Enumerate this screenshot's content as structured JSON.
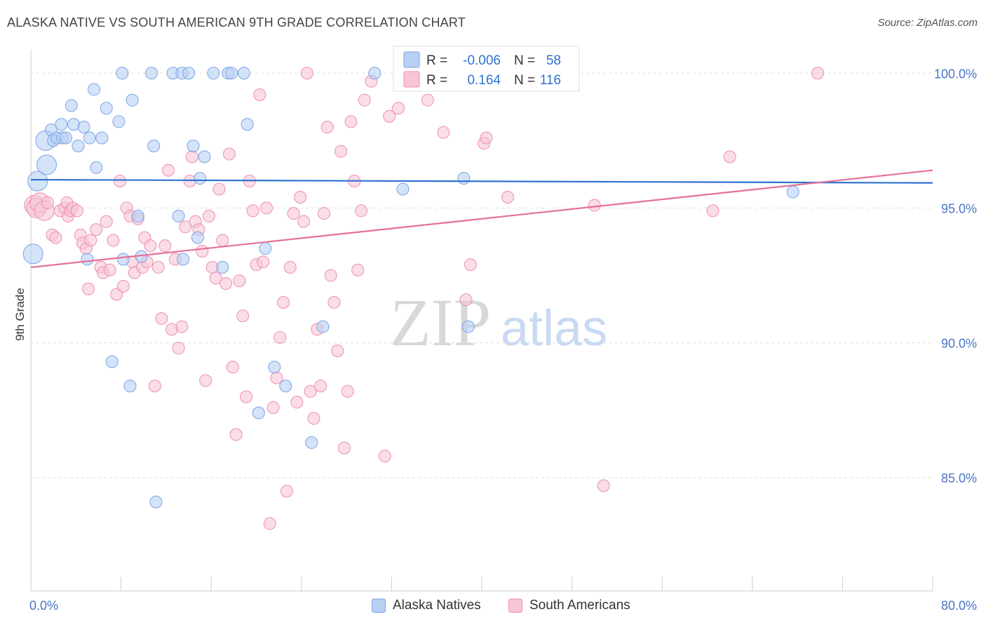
{
  "title": "ALASKA NATIVE VS SOUTH AMERICAN 9TH GRADE CORRELATION CHART",
  "source": "Source: ZipAtlas.com",
  "watermark": {
    "zip": "ZIP",
    "atlas": "atlas"
  },
  "colors": {
    "blue": "#7ba3e6",
    "blue_fill": "#b8d0f3",
    "blue_line": "#2f72d0",
    "pink": "#ee8fae",
    "pink_fill": "#f7c6d6",
    "pink_line": "#e4709a",
    "tick": "#4a74c8",
    "grid": "#dddddd"
  },
  "legend": {
    "rows": [
      {
        "r_label": "R =",
        "r_value": "-0.006",
        "n_label": "N =",
        "n_value": "58"
      },
      {
        "r_label": "R =",
        "r_value": "0.164",
        "n_label": "N =",
        "n_value": "116"
      }
    ]
  },
  "bottom_legend": {
    "alaska": "Alaska Natives",
    "south": "South Americans"
  },
  "chart_data": {
    "type": "scatter",
    "title": "ALASKA NATIVE VS SOUTH AMERICAN 9TH GRADE CORRELATION CHART",
    "xlabel": "",
    "ylabel": "9th Grade",
    "xlim": [
      0,
      80
    ],
    "ylim": [
      80.8,
      101.1
    ],
    "x_tick_labels": [
      "0.0%",
      "80.0%"
    ],
    "y_ticks": [
      100,
      95,
      90,
      85
    ],
    "y_tick_labels": [
      "100.0%",
      "95.0%",
      "90.0%",
      "85.0%"
    ],
    "grid": true,
    "legend_position": "top-center",
    "series": [
      {
        "name": "Alaska Natives",
        "r": -0.006,
        "n": 58,
        "trend": {
          "x0": 0,
          "y0": 96.05,
          "x1": 80,
          "y1": 95.93
        },
        "points": [
          [
            0.2,
            93.3
          ],
          [
            0.6,
            96.0
          ],
          [
            1.3,
            97.5
          ],
          [
            1.4,
            96.6
          ],
          [
            1.8,
            97.9
          ],
          [
            2.0,
            97.5
          ],
          [
            2.3,
            97.6
          ],
          [
            2.7,
            98.1
          ],
          [
            2.8,
            97.6
          ],
          [
            3.1,
            97.6
          ],
          [
            3.6,
            98.8
          ],
          [
            3.8,
            98.1
          ],
          [
            4.2,
            97.3
          ],
          [
            4.7,
            98.0
          ],
          [
            5.0,
            93.1
          ],
          [
            5.2,
            97.6
          ],
          [
            5.6,
            99.4
          ],
          [
            5.8,
            96.5
          ],
          [
            6.3,
            97.6
          ],
          [
            6.7,
            98.7
          ],
          [
            7.2,
            89.3
          ],
          [
            7.8,
            98.2
          ],
          [
            8.1,
            100.0
          ],
          [
            8.2,
            93.1
          ],
          [
            8.8,
            88.4
          ],
          [
            9.0,
            99.0
          ],
          [
            9.5,
            94.7
          ],
          [
            9.8,
            93.2
          ],
          [
            10.7,
            100.0
          ],
          [
            10.9,
            97.3
          ],
          [
            11.1,
            84.1
          ],
          [
            12.6,
            100.0
          ],
          [
            13.1,
            94.7
          ],
          [
            13.4,
            100.0
          ],
          [
            13.5,
            93.1
          ],
          [
            14.0,
            100.0
          ],
          [
            14.4,
            97.3
          ],
          [
            14.8,
            93.9
          ],
          [
            15.0,
            96.1
          ],
          [
            15.4,
            96.9
          ],
          [
            16.2,
            100.0
          ],
          [
            17.0,
            92.8
          ],
          [
            17.5,
            100.0
          ],
          [
            17.8,
            100.0
          ],
          [
            18.9,
            100.0
          ],
          [
            19.2,
            98.1
          ],
          [
            20.2,
            87.4
          ],
          [
            20.8,
            93.5
          ],
          [
            21.6,
            89.1
          ],
          [
            22.6,
            88.4
          ],
          [
            24.9,
            86.3
          ],
          [
            25.9,
            90.6
          ],
          [
            30.5,
            100.0
          ],
          [
            33.0,
            95.7
          ],
          [
            38.4,
            96.1
          ],
          [
            38.8,
            90.6
          ],
          [
            41.3,
            100.0
          ],
          [
            67.6,
            95.6
          ]
        ]
      },
      {
        "name": "South Americans",
        "r": 0.164,
        "n": 116,
        "trend": {
          "x0": 0,
          "y0": 92.8,
          "x1": 80,
          "y1": 96.4
        },
        "points": [
          [
            0.3,
            95.1
          ],
          [
            0.5,
            95.0
          ],
          [
            0.8,
            95.2
          ],
          [
            1.2,
            94.9
          ],
          [
            1.5,
            95.2
          ],
          [
            1.9,
            94.0
          ],
          [
            2.2,
            93.9
          ],
          [
            2.6,
            94.9
          ],
          [
            3.0,
            95.0
          ],
          [
            3.2,
            95.2
          ],
          [
            3.3,
            94.7
          ],
          [
            3.5,
            94.9
          ],
          [
            3.7,
            95.0
          ],
          [
            4.1,
            94.9
          ],
          [
            4.4,
            94.0
          ],
          [
            4.6,
            93.7
          ],
          [
            4.9,
            93.5
          ],
          [
            5.1,
            92.0
          ],
          [
            5.3,
            93.8
          ],
          [
            5.8,
            94.2
          ],
          [
            6.2,
            92.8
          ],
          [
            6.4,
            92.6
          ],
          [
            6.7,
            94.5
          ],
          [
            7.0,
            92.7
          ],
          [
            7.3,
            93.8
          ],
          [
            7.6,
            91.8
          ],
          [
            7.9,
            96.0
          ],
          [
            8.2,
            92.1
          ],
          [
            8.5,
            95.0
          ],
          [
            8.8,
            94.7
          ],
          [
            9.0,
            93.0
          ],
          [
            9.2,
            92.6
          ],
          [
            9.5,
            94.6
          ],
          [
            9.9,
            92.8
          ],
          [
            10.1,
            93.9
          ],
          [
            10.3,
            93.0
          ],
          [
            10.6,
            93.6
          ],
          [
            11.0,
            88.4
          ],
          [
            11.3,
            92.8
          ],
          [
            11.6,
            90.9
          ],
          [
            11.9,
            93.6
          ],
          [
            12.2,
            96.4
          ],
          [
            12.5,
            90.5
          ],
          [
            12.8,
            93.1
          ],
          [
            13.1,
            89.8
          ],
          [
            13.4,
            90.6
          ],
          [
            13.7,
            94.3
          ],
          [
            14.1,
            96.0
          ],
          [
            14.3,
            96.9
          ],
          [
            14.6,
            94.5
          ],
          [
            14.9,
            94.2
          ],
          [
            15.2,
            93.4
          ],
          [
            15.5,
            88.6
          ],
          [
            15.8,
            94.7
          ],
          [
            16.1,
            92.8
          ],
          [
            16.4,
            92.4
          ],
          [
            16.7,
            95.7
          ],
          [
            17.0,
            93.8
          ],
          [
            17.3,
            92.2
          ],
          [
            17.6,
            97.0
          ],
          [
            17.9,
            89.1
          ],
          [
            18.2,
            86.6
          ],
          [
            18.5,
            92.3
          ],
          [
            18.8,
            91.0
          ],
          [
            19.1,
            88.0
          ],
          [
            19.4,
            96.0
          ],
          [
            19.7,
            94.9
          ],
          [
            20.0,
            92.9
          ],
          [
            20.3,
            99.2
          ],
          [
            20.6,
            93.0
          ],
          [
            20.9,
            95.0
          ],
          [
            21.2,
            83.3
          ],
          [
            21.5,
            87.6
          ],
          [
            21.8,
            88.7
          ],
          [
            22.1,
            90.2
          ],
          [
            22.4,
            91.5
          ],
          [
            22.7,
            84.5
          ],
          [
            23.0,
            92.8
          ],
          [
            23.3,
            94.8
          ],
          [
            23.6,
            87.8
          ],
          [
            23.9,
            95.4
          ],
          [
            24.2,
            94.5
          ],
          [
            24.5,
            100.0
          ],
          [
            24.8,
            88.2
          ],
          [
            25.1,
            87.2
          ],
          [
            25.4,
            90.5
          ],
          [
            25.7,
            88.4
          ],
          [
            26.0,
            94.8
          ],
          [
            26.3,
            98.0
          ],
          [
            26.6,
            92.5
          ],
          [
            26.9,
            91.5
          ],
          [
            27.2,
            89.7
          ],
          [
            27.5,
            97.1
          ],
          [
            27.8,
            86.1
          ],
          [
            28.1,
            88.2
          ],
          [
            28.4,
            98.2
          ],
          [
            28.7,
            96.0
          ],
          [
            29.0,
            92.7
          ],
          [
            29.3,
            94.9
          ],
          [
            29.6,
            99.0
          ],
          [
            30.2,
            99.7
          ],
          [
            31.4,
            85.8
          ],
          [
            31.8,
            98.4
          ],
          [
            32.6,
            98.7
          ],
          [
            33.2,
            100.0
          ],
          [
            34.0,
            99.7
          ],
          [
            35.2,
            99.0
          ],
          [
            36.6,
            97.8
          ],
          [
            38.6,
            91.6
          ],
          [
            39.0,
            92.9
          ],
          [
            40.2,
            97.4
          ],
          [
            40.4,
            97.6
          ],
          [
            42.3,
            95.4
          ],
          [
            50.0,
            95.1
          ],
          [
            50.8,
            84.7
          ],
          [
            62.0,
            96.9
          ],
          [
            69.8,
            100.0
          ],
          [
            60.5,
            94.9
          ]
        ]
      }
    ]
  }
}
